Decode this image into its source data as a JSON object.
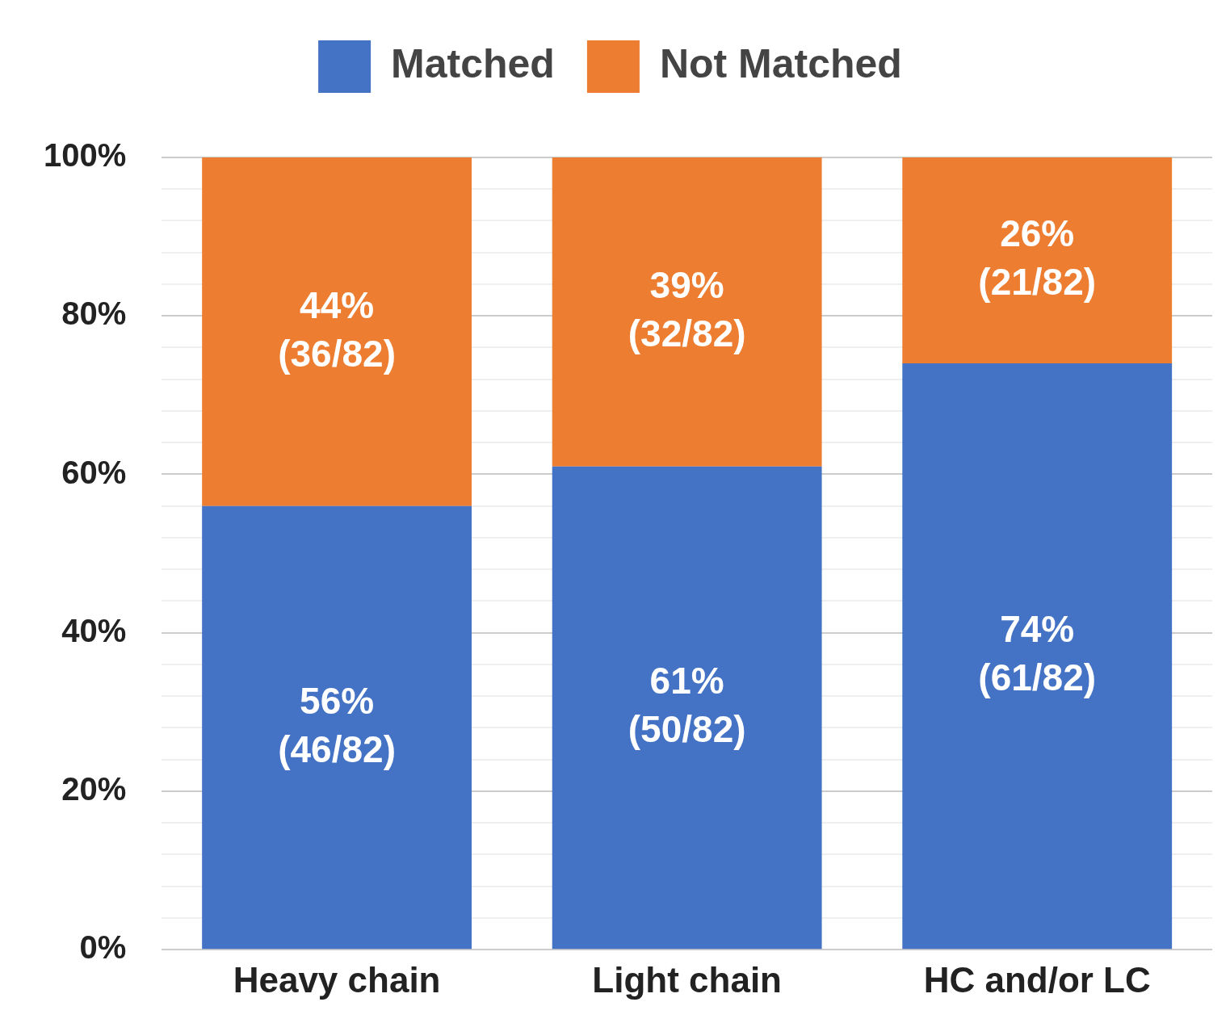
{
  "chart_data": {
    "type": "bar",
    "stacked": true,
    "categories": [
      "Heavy chain",
      "Light chain",
      "HC and/or LC"
    ],
    "series": [
      {
        "name": "Matched",
        "color": "#4472c4",
        "values": [
          56,
          61,
          74
        ],
        "value_labels": [
          "56%\n(46/82)",
          "61%\n(50/82)",
          "74%\n(61/82)"
        ]
      },
      {
        "name": "Not Matched",
        "color": "#ed7d31",
        "values": [
          44,
          39,
          26
        ],
        "value_labels": [
          "44%\n(36/82)",
          "39%\n(32/82)",
          "26%\n(21/82)"
        ]
      }
    ],
    "ylim": [
      0,
      100
    ],
    "yticks": [
      {
        "value": 0,
        "label": "0%"
      },
      {
        "value": 4,
        "label": null
      },
      {
        "value": 8,
        "label": null
      },
      {
        "value": 12,
        "label": null
      },
      {
        "value": 16,
        "label": null
      },
      {
        "value": 20,
        "label": "20%"
      },
      {
        "value": 24,
        "label": null
      },
      {
        "value": 28,
        "label": null
      },
      {
        "value": 32,
        "label": null
      },
      {
        "value": 36,
        "label": null
      },
      {
        "value": 40,
        "label": "40%"
      },
      {
        "value": 44,
        "label": null
      },
      {
        "value": 48,
        "label": null
      },
      {
        "value": 52,
        "label": null
      },
      {
        "value": 56,
        "label": null
      },
      {
        "value": 60,
        "label": "60%"
      },
      {
        "value": 64,
        "label": null
      },
      {
        "value": 68,
        "label": null
      },
      {
        "value": 72,
        "label": null
      },
      {
        "value": 76,
        "label": null
      },
      {
        "value": 80,
        "label": "80%"
      },
      {
        "value": 84,
        "label": null
      },
      {
        "value": 88,
        "label": null
      },
      {
        "value": 92,
        "label": null
      },
      {
        "value": 96,
        "label": null
      },
      {
        "value": 100,
        "label": "100%"
      }
    ],
    "grid": "y",
    "legend": "top"
  }
}
